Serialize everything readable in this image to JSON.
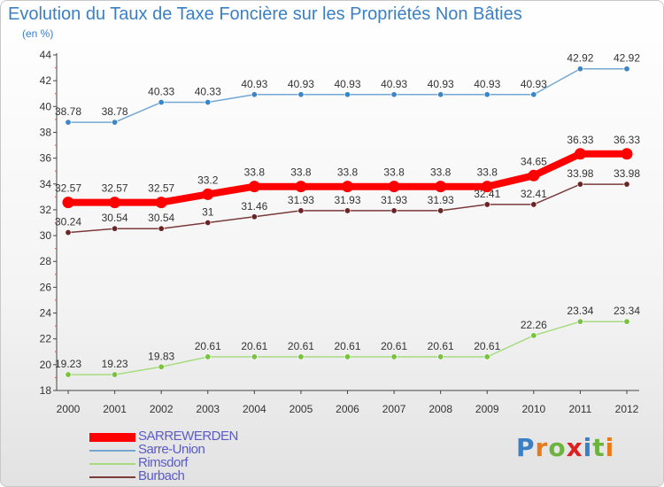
{
  "header": {
    "title": "Evolution du Taux de Taxe Foncière sur les Propriétés Non Bâties",
    "unit": "(en %)"
  },
  "logo": {
    "text": "Proxiti",
    "letters": [
      "P",
      "r",
      "o",
      "x",
      "i",
      "t",
      "i"
    ],
    "letter_colors": [
      "#3b7fc4",
      "#e87a1c",
      "#6db33f",
      "#e02020",
      "#3b7fc4",
      "#6db33f",
      "#e87a1c"
    ]
  },
  "chart_data": {
    "type": "line",
    "title": "Evolution du Taux de Taxe Foncière sur les Propriétés Non Bâties",
    "ylabel": "(en %)",
    "xlabel": "",
    "x": [
      "2000",
      "2001",
      "2002",
      "2003",
      "2004",
      "2005",
      "2006",
      "2007",
      "2008",
      "2009",
      "2010",
      "2011",
      "2012"
    ],
    "ylim": [
      18,
      44
    ],
    "yticks": [
      18,
      20,
      22,
      24,
      26,
      28,
      30,
      32,
      34,
      36,
      38,
      40,
      42,
      44
    ],
    "grid": false,
    "legend_position": "bottom-left",
    "series": [
      {
        "name": "SARREWERDEN",
        "color": "#ff0000",
        "emphasis": true,
        "values": [
          32.57,
          32.57,
          32.57,
          33.2,
          33.8,
          33.8,
          33.8,
          33.8,
          33.8,
          33.8,
          34.65,
          36.33,
          36.33
        ],
        "labels": [
          "32.57",
          "32.57",
          "32.57",
          "33.2",
          "33.8",
          "33.8",
          "33.8",
          "33.8",
          "33.8",
          "33.8",
          "34.65",
          "36.33",
          "36.33"
        ]
      },
      {
        "name": "Sarre-Union",
        "color": "#74a8d4",
        "point_color": "#3b86c8",
        "values": [
          38.78,
          38.78,
          40.33,
          40.33,
          40.93,
          40.93,
          40.93,
          40.93,
          40.93,
          40.93,
          40.93,
          42.92,
          42.92
        ],
        "labels": [
          "38.78",
          "38.78",
          "40.33",
          "40.33",
          "40.93",
          "40.93",
          "40.93",
          "40.93",
          "40.93",
          "40.93",
          "40.93",
          "42.92",
          "42.92"
        ]
      },
      {
        "name": "Rimsdorf",
        "color": "#a6dc7e",
        "point_color": "#78c23e",
        "values": [
          19.23,
          19.23,
          19.83,
          20.61,
          20.61,
          20.61,
          20.61,
          20.61,
          20.61,
          20.61,
          22.26,
          23.34,
          23.34
        ],
        "labels": [
          "19.23",
          "19.23",
          "19.83",
          "20.61",
          "20.61",
          "20.61",
          "20.61",
          "20.61",
          "20.61",
          "20.61",
          "22.26",
          "23.34",
          "23.34"
        ]
      },
      {
        "name": "Burbach",
        "color": "#7a3a3a",
        "point_color": "#6b2424",
        "values": [
          30.24,
          30.54,
          30.54,
          31,
          31.46,
          31.93,
          31.93,
          31.93,
          31.93,
          32.41,
          32.41,
          33.98,
          33.98
        ],
        "labels": [
          "30.24",
          "30.54",
          "30.54",
          "31",
          "31.46",
          "31.93",
          "31.93",
          "31.93",
          "31.93",
          "32.41",
          "32.41",
          "33.98",
          "33.98"
        ]
      }
    ]
  }
}
